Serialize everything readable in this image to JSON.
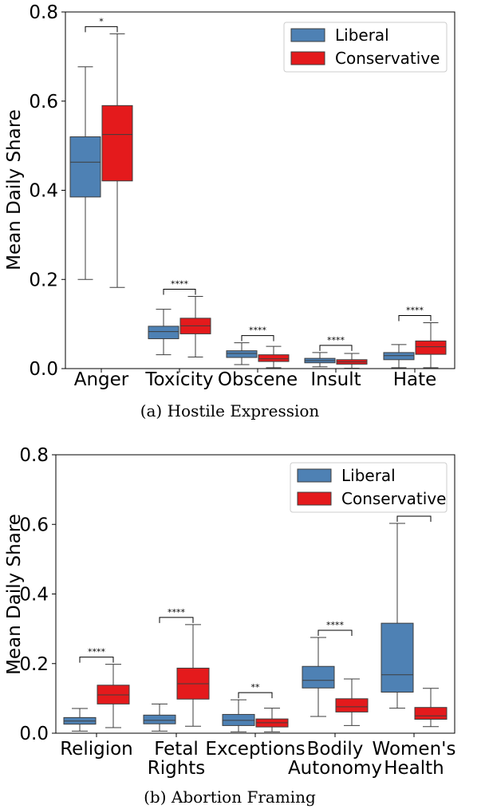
{
  "chart_data": [
    {
      "type": "box",
      "caption": "(a)  Hostile Expression",
      "ylabel": "Mean Daily Share",
      "ylim": [
        0,
        0.8
      ],
      "yticks": [
        "0.0",
        "0.2",
        "0.4",
        "0.6",
        "0.8"
      ],
      "legend": {
        "placement": "top-right"
      },
      "categories": [
        [
          "Anger"
        ],
        [
          "Toxicity"
        ],
        [
          "Obscene"
        ],
        [
          "Insult"
        ],
        [
          "Hate"
        ]
      ],
      "series": [
        {
          "name": "Liberal",
          "color": "#4e81b4",
          "boxes": [
            {
              "min": 0.2,
              "q1": 0.385,
              "median": 0.463,
              "q3": 0.52,
              "max": 0.677
            },
            {
              "min": 0.031,
              "q1": 0.067,
              "median": 0.083,
              "q3": 0.095,
              "max": 0.133
            },
            {
              "min": 0.009,
              "q1": 0.025,
              "median": 0.034,
              "q3": 0.04,
              "max": 0.058
            },
            {
              "min": 0.004,
              "q1": 0.013,
              "median": 0.018,
              "q3": 0.023,
              "max": 0.036
            },
            {
              "min": 0.002,
              "q1": 0.02,
              "median": 0.029,
              "q3": 0.036,
              "max": 0.054
            }
          ]
        },
        {
          "name": "Conservative",
          "color": "#e41a1c",
          "boxes": [
            {
              "min": 0.182,
              "q1": 0.421,
              "median": 0.525,
              "q3": 0.59,
              "max": 0.751
            },
            {
              "min": 0.026,
              "q1": 0.078,
              "median": 0.096,
              "q3": 0.113,
              "max": 0.162
            },
            {
              "min": 0.002,
              "q1": 0.016,
              "median": 0.022,
              "q3": 0.031,
              "max": 0.05
            },
            {
              "min": 0.001,
              "q1": 0.01,
              "median": 0.015,
              "q3": 0.02,
              "max": 0.034
            },
            {
              "min": 0.002,
              "q1": 0.032,
              "median": 0.049,
              "q3": 0.062,
              "max": 0.103
            }
          ]
        }
      ],
      "significance": [
        "*",
        "****",
        "****",
        "****",
        "****"
      ]
    },
    {
      "type": "box",
      "caption": "(b)  Abortion Framing",
      "ylabel": "Mean Daily Share",
      "ylim": [
        0,
        0.8
      ],
      "yticks": [
        "0.0",
        "0.2",
        "0.4",
        "0.6",
        "0.8"
      ],
      "legend": {
        "placement": "top-right"
      },
      "categories": [
        [
          "Religion"
        ],
        [
          "Fetal",
          "Rights"
        ],
        [
          "Exceptions"
        ],
        [
          "Bodily",
          "Autonomy"
        ],
        [
          "Women's",
          "Health"
        ]
      ],
      "series": [
        {
          "name": "Liberal",
          "color": "#4e81b4",
          "boxes": [
            {
              "min": 0.006,
              "q1": 0.026,
              "median": 0.035,
              "q3": 0.045,
              "max": 0.071
            },
            {
              "min": 0.006,
              "q1": 0.027,
              "median": 0.037,
              "q3": 0.052,
              "max": 0.084
            },
            {
              "min": 0.004,
              "q1": 0.022,
              "median": 0.037,
              "q3": 0.054,
              "max": 0.096
            },
            {
              "min": 0.048,
              "q1": 0.13,
              "median": 0.152,
              "q3": 0.192,
              "max": 0.275
            },
            {
              "min": 0.072,
              "q1": 0.118,
              "median": 0.168,
              "q3": 0.316,
              "max": 0.603
            }
          ]
        },
        {
          "name": "Conservative",
          "color": "#e41a1c",
          "boxes": [
            {
              "min": 0.016,
              "q1": 0.084,
              "median": 0.11,
              "q3": 0.138,
              "max": 0.198
            },
            {
              "min": 0.02,
              "q1": 0.098,
              "median": 0.142,
              "q3": 0.187,
              "max": 0.312
            },
            {
              "min": 0.004,
              "q1": 0.018,
              "median": 0.03,
              "q3": 0.041,
              "max": 0.072
            },
            {
              "min": 0.022,
              "q1": 0.061,
              "median": 0.076,
              "q3": 0.099,
              "max": 0.156
            },
            {
              "min": 0.019,
              "q1": 0.04,
              "median": 0.05,
              "q3": 0.074,
              "max": 0.129
            }
          ]
        }
      ],
      "significance": [
        "****",
        "****",
        "**",
        "****",
        "****"
      ]
    }
  ]
}
